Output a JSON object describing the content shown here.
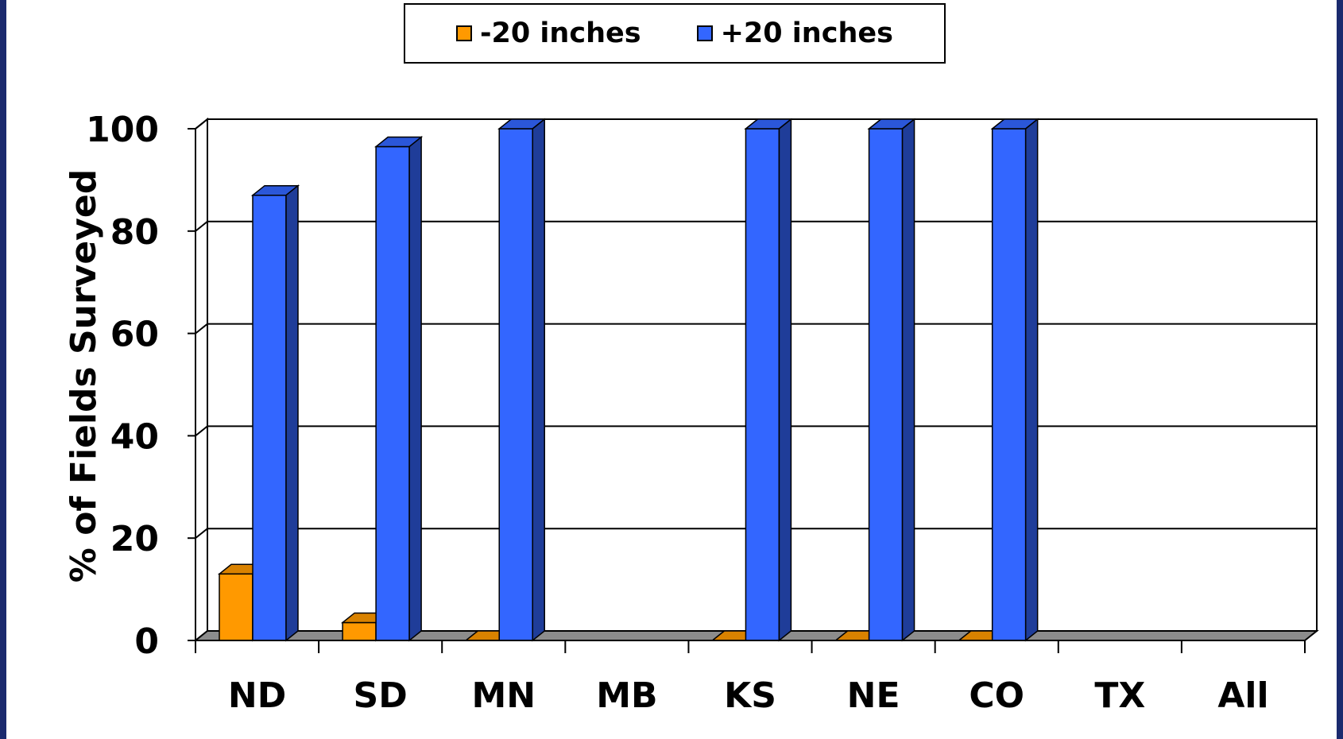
{
  "chart_data": {
    "type": "bar",
    "title": "",
    "ylabel": "% of Fields Surveyed",
    "xlabel": "",
    "ylim": [
      0,
      100
    ],
    "yticks": [
      0,
      20,
      40,
      60,
      80,
      100
    ],
    "categories": [
      "ND",
      "SD",
      "MN",
      "MB",
      "KS",
      "NE",
      "CO",
      "TX",
      "All"
    ],
    "series": [
      {
        "name": "-20 inches",
        "color": "#ff9900",
        "values": [
          13,
          3.5,
          0,
          null,
          0,
          0,
          0,
          null,
          null
        ]
      },
      {
        "name": "+20 inches",
        "color": "#3366ff",
        "values": [
          87,
          96.5,
          100,
          null,
          100,
          100,
          100,
          null,
          null
        ]
      }
    ],
    "grid": true,
    "legend_position": "top-center",
    "style": "3d-bar"
  }
}
